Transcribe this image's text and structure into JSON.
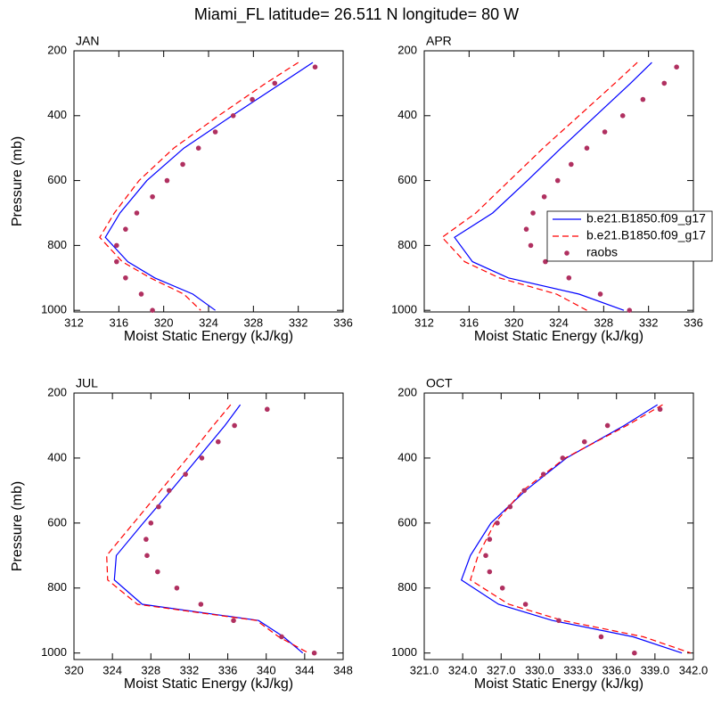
{
  "title": "Miami_FL  latitude= 26.511 N longitude= 80 W",
  "chart_data": [
    {
      "type": "line",
      "title": "JAN",
      "xlabel": "Moist Static Energy (kJ/kg)",
      "ylabel": "Pressure (mb)",
      "xlim": [
        312,
        336
      ],
      "xticks": [
        312,
        316,
        320,
        324,
        328,
        332,
        336
      ],
      "ylim": [
        200,
        1005
      ],
      "yticks": [
        200,
        400,
        600,
        800,
        1000
      ],
      "y_inverted": true,
      "series": [
        {
          "name": "b.e21.B1850.f09_g17",
          "color": "#0000ff",
          "style": "solid",
          "pressure": [
            236,
            300,
            400,
            500,
            600,
            700,
            775,
            850,
            900,
            950,
            1000
          ],
          "values": [
            333.3,
            330.5,
            326.1,
            321.8,
            318.5,
            316.1,
            314.8,
            316.8,
            319.2,
            322.6,
            324.6
          ]
        },
        {
          "name": "b.e21.B1850.f09_g17",
          "color": "#ff0000",
          "style": "dashed",
          "pressure": [
            236,
            300,
            400,
            500,
            600,
            700,
            775,
            850,
            900,
            950,
            1000
          ],
          "values": [
            332.0,
            329.1,
            324.9,
            320.9,
            317.8,
            315.6,
            314.3,
            316.3,
            318.8,
            321.8,
            323.3
          ]
        },
        {
          "name": "raobs",
          "color": "#b03060",
          "style": "markers",
          "pressure": [
            250,
            300,
            350,
            400,
            450,
            500,
            550,
            600,
            650,
            700,
            750,
            800,
            850,
            900,
            950,
            1000
          ],
          "values": [
            333.5,
            329.9,
            327.9,
            326.2,
            324.6,
            323.1,
            321.7,
            320.3,
            319.0,
            317.6,
            316.6,
            315.8,
            315.8,
            316.6,
            318.0,
            319.0
          ]
        }
      ]
    },
    {
      "type": "line",
      "title": "APR",
      "xlabel": "Moist Static Energy (kJ/kg)",
      "legend": true,
      "xlim": [
        312,
        336
      ],
      "xticks": [
        312,
        316,
        320,
        324,
        328,
        332,
        336
      ],
      "ylim": [
        200,
        1005
      ],
      "yticks": [
        200,
        400,
        600,
        800,
        1000
      ],
      "y_inverted": true,
      "series": [
        {
          "name": "b.e21.B1850.f09_g17",
          "color": "#0000ff",
          "style": "solid",
          "pressure": [
            236,
            300,
            400,
            500,
            600,
            700,
            775,
            850,
            900,
            950,
            1000
          ],
          "values": [
            332.3,
            330.4,
            327.3,
            324.2,
            321.2,
            318.1,
            314.7,
            316.3,
            319.5,
            325.8,
            329.8
          ]
        },
        {
          "name": "b.e21.B1850.f09_g17",
          "color": "#ff0000",
          "style": "dashed",
          "pressure": [
            236,
            300,
            400,
            500,
            600,
            700,
            775,
            850,
            900,
            950,
            1000
          ],
          "values": [
            331.0,
            329.0,
            325.8,
            322.6,
            319.6,
            316.6,
            313.6,
            315.6,
            318.7,
            323.8,
            326.5
          ]
        },
        {
          "name": "raobs",
          "color": "#b03060",
          "style": "markers",
          "pressure": [
            250,
            300,
            350,
            400,
            450,
            500,
            550,
            600,
            650,
            700,
            750,
            800,
            850,
            900,
            950,
            1000
          ],
          "values": [
            334.5,
            333.4,
            331.5,
            329.7,
            328.1,
            326.5,
            325.1,
            323.9,
            322.7,
            321.7,
            321.1,
            321.5,
            322.8,
            324.9,
            327.7,
            330.3
          ]
        }
      ]
    },
    {
      "type": "line",
      "title": "JUL",
      "xlabel": "Moist Static Energy (kJ/kg)",
      "ylabel": "Pressure (mb)",
      "xlim": [
        320,
        348
      ],
      "xticks": [
        320,
        324,
        328,
        332,
        336,
        340,
        344,
        348
      ],
      "ylim": [
        200,
        1020
      ],
      "yticks": [
        200,
        400,
        600,
        800,
        1000
      ],
      "y_inverted": true,
      "series": [
        {
          "name": "b.e21.B1850.f09_g17",
          "color": "#0000ff",
          "style": "solid",
          "pressure": [
            236,
            300,
            400,
            500,
            600,
            700,
            775,
            850,
            900,
            950,
            1000
          ],
          "values": [
            337.3,
            335.7,
            332.9,
            330.1,
            327.2,
            324.4,
            324.2,
            327.1,
            339.2,
            341.8,
            343.8
          ]
        },
        {
          "name": "b.e21.B1850.f09_g17",
          "color": "#ff0000",
          "style": "dashed",
          "pressure": [
            236,
            300,
            400,
            500,
            600,
            700,
            775,
            850,
            900,
            950,
            1000
          ],
          "values": [
            336.3,
            334.5,
            331.8,
            329.0,
            326.2,
            323.4,
            323.5,
            326.6,
            339.0,
            341.3,
            344.4
          ]
        },
        {
          "name": "raobs",
          "color": "#b03060",
          "style": "markers",
          "pressure": [
            250,
            300,
            350,
            400,
            450,
            500,
            550,
            600,
            650,
            700,
            750,
            800,
            850,
            900,
            950,
            1000
          ],
          "values": [
            340.1,
            336.7,
            335.0,
            333.3,
            331.6,
            329.9,
            328.8,
            328.0,
            327.5,
            327.6,
            328.7,
            330.7,
            333.2,
            336.6,
            341.6,
            345.0
          ]
        }
      ]
    },
    {
      "type": "line",
      "title": "OCT",
      "xlabel": "Moist Static Energy (kJ/kg)",
      "xlim": [
        321,
        342
      ],
      "xticks": [
        {
          "value": 321,
          "label": "321.0"
        },
        {
          "value": 324,
          "label": "324.0"
        },
        {
          "value": 327,
          "label": "327.0"
        },
        {
          "value": 330,
          "label": "330.0"
        },
        {
          "value": 333,
          "label": "333.0"
        },
        {
          "value": 336,
          "label": "336.0"
        },
        {
          "value": 339,
          "label": "339.0"
        },
        {
          "value": 342,
          "label": "342.0"
        }
      ],
      "ylim": [
        200,
        1020
      ],
      "yticks": [
        200,
        400,
        600,
        800,
        1000
      ],
      "y_inverted": true,
      "series": [
        {
          "name": "b.e21.B1850.f09_g17",
          "color": "#0000ff",
          "style": "solid",
          "pressure": [
            236,
            300,
            400,
            500,
            600,
            700,
            775,
            850,
            900,
            950,
            1000
          ],
          "values": [
            339.2,
            336.6,
            332.1,
            328.9,
            326.2,
            324.6,
            323.9,
            326.8,
            331.0,
            337.3,
            341.1
          ]
        },
        {
          "name": "b.e21.B1850.f09_g17",
          "color": "#ff0000",
          "style": "dashed",
          "pressure": [
            236,
            300,
            400,
            500,
            600,
            700,
            775,
            850,
            900,
            950,
            1000
          ],
          "values": [
            339.6,
            336.8,
            332.0,
            328.7,
            326.5,
            325.2,
            324.6,
            327.6,
            331.8,
            338.1,
            341.8
          ]
        },
        {
          "name": "raobs",
          "color": "#b03060",
          "style": "markers",
          "pressure": [
            250,
            300,
            350,
            400,
            450,
            500,
            550,
            600,
            650,
            700,
            750,
            800,
            850,
            900,
            950,
            1000
          ],
          "values": [
            339.4,
            335.3,
            333.5,
            331.8,
            330.3,
            328.8,
            327.7,
            326.7,
            326.1,
            325.8,
            326.1,
            327.1,
            328.9,
            331.5,
            334.8,
            337.4
          ]
        }
      ]
    }
  ]
}
